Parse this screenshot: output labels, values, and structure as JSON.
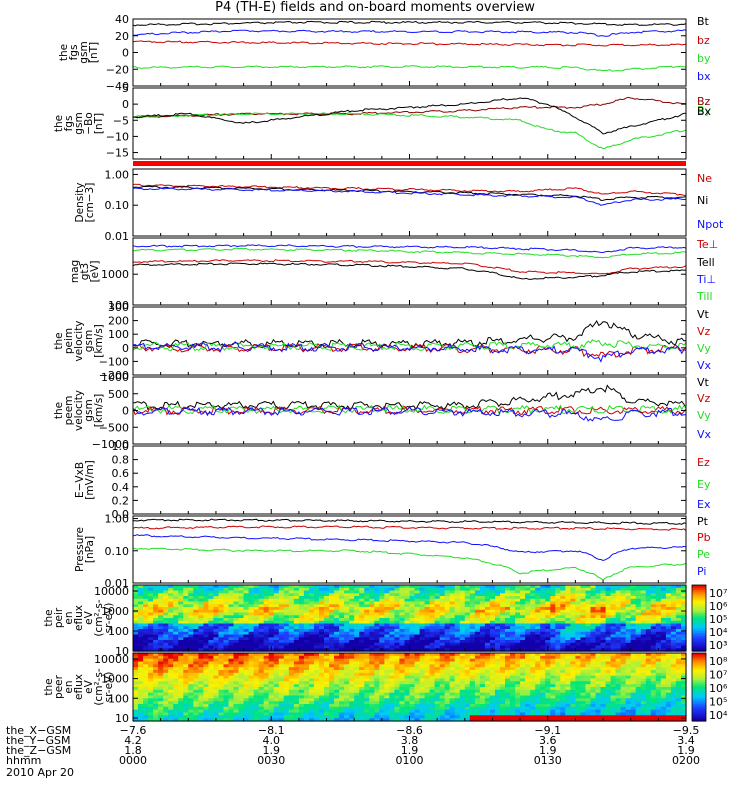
{
  "title": "P4 (TH-E) fields and on-board moments overview",
  "colors": {
    "black": "#000000",
    "red": "#cc0000",
    "green": "#22dd22",
    "blue": "#1010ff",
    "darkred": "#8b0000",
    "band": "#ff0000"
  },
  "chart_data": [
    {
      "type": "line",
      "ylabel": [
        "the",
        "fgs",
        "gsm",
        "[nT]"
      ],
      "ylim": [
        -40,
        40
      ],
      "ticks": [
        "40",
        "20",
        "0",
        "−20",
        "−40"
      ],
      "tick_values": [
        40,
        20,
        0,
        -20,
        -40
      ],
      "series": [
        {
          "name": "Bt",
          "color": "#000000",
          "x": [
            0,
            0.1,
            0.2,
            0.3,
            0.4,
            0.5,
            0.6,
            0.7,
            0.8,
            0.9,
            1.0
          ],
          "y": [
            33,
            34,
            35,
            36,
            36,
            36,
            36,
            36,
            35,
            33,
            34
          ]
        },
        {
          "name": "bz",
          "color": "#cc0000",
          "x": [
            0,
            0.2,
            0.4,
            0.6,
            0.8,
            1.0
          ],
          "y": [
            13,
            12,
            11,
            10,
            9,
            9
          ]
        },
        {
          "name": "by",
          "color": "#22dd22",
          "x": [
            0,
            0.2,
            0.4,
            0.6,
            0.8,
            0.85,
            0.9,
            1.0
          ],
          "y": [
            -18,
            -17,
            -17,
            -17,
            -18,
            -22,
            -20,
            -16
          ]
        },
        {
          "name": "bx",
          "color": "#1010ff",
          "x": [
            0,
            0.1,
            0.2,
            0.4,
            0.6,
            0.8,
            0.85,
            0.9,
            1.0
          ],
          "y": [
            21,
            24,
            26,
            25,
            25,
            24,
            20,
            24,
            26
          ]
        }
      ]
    },
    {
      "type": "line",
      "ylabel": [
        "the",
        "fgs",
        "gsm",
        "−Bo",
        "[nT]"
      ],
      "ylim": [
        -17,
        5
      ],
      "ticks": [
        "5",
        "0",
        "−5",
        "−10",
        "−15"
      ],
      "tick_values": [
        5,
        0,
        -5,
        -10,
        -15
      ],
      "series": [
        {
          "name": "Bz",
          "color": "#8b0000",
          "x": [
            0,
            0.2,
            0.4,
            0.6,
            0.7,
            0.8,
            0.85,
            0.9,
            1.0
          ],
          "y": [
            -4,
            -3,
            -3,
            -2,
            -1,
            -1,
            0,
            2,
            0
          ]
        },
        {
          "name": "By",
          "color": "#22dd22",
          "x": [
            0,
            0.2,
            0.4,
            0.6,
            0.7,
            0.75,
            0.8,
            0.85,
            0.9,
            1.0
          ],
          "y": [
            -4,
            -3,
            -3,
            -4,
            -5,
            -8,
            -9,
            -14,
            -11,
            -8
          ]
        },
        {
          "name": "Bx",
          "color": "#000000",
          "x": [
            0,
            0.1,
            0.2,
            0.3,
            0.4,
            0.5,
            0.6,
            0.7,
            0.75,
            0.8,
            0.85,
            0.9,
            1.0
          ],
          "y": [
            -4,
            -3,
            -6,
            -4,
            -2,
            -1,
            0,
            2,
            0,
            -4,
            -9,
            -7,
            -3
          ]
        }
      ]
    },
    {
      "type": "band",
      "color": "#ff0000"
    },
    {
      "type": "line",
      "ylabel": [
        "Density",
        "[cm−3]"
      ],
      "scale": "log",
      "ylim": [
        0.01,
        1.5
      ],
      "ticks": [
        "1.00",
        "0.10",
        "0.01"
      ],
      "tick_values": [
        1,
        0.1,
        0.01
      ],
      "series": [
        {
          "name": "Ne",
          "color": "#cc0000",
          "x": [
            0,
            0.2,
            0.4,
            0.6,
            0.7,
            0.8,
            0.85,
            0.9,
            1.0
          ],
          "y": [
            0.45,
            0.4,
            0.35,
            0.3,
            0.28,
            0.35,
            0.22,
            0.28,
            0.22
          ]
        },
        {
          "name": "Ni",
          "color": "#000000",
          "x": [
            0,
            0.2,
            0.4,
            0.6,
            0.8,
            0.85,
            0.9,
            1.0
          ],
          "y": [
            0.4,
            0.35,
            0.3,
            0.25,
            0.2,
            0.15,
            0.18,
            0.18
          ]
        },
        {
          "name": "Npot",
          "color": "#1010ff",
          "x": [
            0,
            0.2,
            0.4,
            0.6,
            0.8,
            0.85,
            0.9,
            1.0
          ],
          "y": [
            0.35,
            0.32,
            0.28,
            0.22,
            0.18,
            0.1,
            0.15,
            0.16
          ]
        }
      ]
    },
    {
      "type": "line",
      "ylabel": [
        "mag",
        "gt3",
        "[eV]"
      ],
      "scale": "log",
      "ylim": [
        100,
        15000
      ],
      "ticks": [
        "1000",
        "100"
      ],
      "tick_values": [
        1000,
        100
      ],
      "series": [
        {
          "name": "Te⊥",
          "color": "#cc0000",
          "x": [
            0,
            0.2,
            0.4,
            0.6,
            0.7,
            0.8,
            0.85,
            0.9,
            1.0
          ],
          "y": [
            2500,
            2800,
            2600,
            2200,
            1200,
            1100,
            1000,
            1500,
            1800
          ]
        },
        {
          "name": "Tell",
          "color": "#000000",
          "x": [
            0,
            0.2,
            0.4,
            0.6,
            0.7,
            0.8,
            0.85,
            0.9,
            1.0
          ],
          "y": [
            2000,
            2200,
            2000,
            1500,
            700,
            800,
            900,
            1200,
            1300
          ]
        },
        {
          "name": "Ti⊥",
          "color": "#1010ff",
          "x": [
            0,
            0.2,
            0.4,
            0.6,
            0.8,
            0.85,
            0.9,
            1.0
          ],
          "y": [
            8000,
            8500,
            8000,
            7500,
            6000,
            5000,
            7000,
            7500
          ]
        },
        {
          "name": "Till",
          "color": "#22dd22",
          "x": [
            0,
            0.2,
            0.4,
            0.6,
            0.8,
            0.85,
            0.9,
            1.0
          ],
          "y": [
            6000,
            6500,
            6000,
            5000,
            4000,
            3500,
            4500,
            5000
          ]
        }
      ]
    },
    {
      "type": "line",
      "ylabel": [
        "the",
        "peim",
        "velocity",
        "gsm",
        "[km/s]"
      ],
      "ylim": [
        -200,
        300
      ],
      "ticks": [
        "300",
        "200",
        "100",
        "0",
        "−100",
        "−200"
      ],
      "tick_values": [
        300,
        200,
        100,
        0,
        -100,
        -200
      ],
      "series": [
        {
          "name": "Vt",
          "color": "#000000",
          "x": [
            0,
            0.2,
            0.4,
            0.6,
            0.7,
            0.8,
            0.85,
            0.9,
            1.0
          ],
          "y": [
            30,
            30,
            30,
            35,
            60,
            80,
            200,
            100,
            40
          ]
        },
        {
          "name": "Vz",
          "color": "#cc0000",
          "x": [
            0,
            0.5,
            0.8,
            0.85,
            0.9,
            1.0
          ],
          "y": [
            0,
            0,
            -20,
            -60,
            -20,
            0
          ]
        },
        {
          "name": "Vy",
          "color": "#22dd22",
          "x": [
            0,
            0.5,
            0.8,
            0.85,
            0.9,
            1.0
          ],
          "y": [
            10,
            10,
            20,
            40,
            20,
            10
          ]
        },
        {
          "name": "Vx",
          "color": "#1010ff",
          "x": [
            0,
            0.5,
            0.8,
            0.85,
            0.9,
            1.0
          ],
          "y": [
            10,
            0,
            -20,
            -80,
            -30,
            -10
          ]
        }
      ]
    },
    {
      "type": "line",
      "ylabel": [
        "the",
        "peem",
        "velocity",
        "gsm",
        "[km/s]"
      ],
      "ylim": [
        -1000,
        1000
      ],
      "ticks": [
        "1000",
        "500",
        "0",
        "−500",
        "−1000"
      ],
      "tick_values": [
        1000,
        500,
        0,
        -500,
        -1000
      ],
      "series": [
        {
          "name": "Vt",
          "color": "#000000",
          "x": [
            0,
            0.2,
            0.4,
            0.6,
            0.7,
            0.8,
            0.85,
            0.9,
            1.0
          ],
          "y": [
            150,
            150,
            150,
            150,
            300,
            500,
            700,
            300,
            150
          ]
        },
        {
          "name": "Vz",
          "color": "#cc0000",
          "x": [
            0,
            0.5,
            1.0
          ],
          "y": [
            0,
            0,
            0
          ]
        },
        {
          "name": "Vy",
          "color": "#22dd22",
          "x": [
            0,
            0.5,
            1.0
          ],
          "y": [
            30,
            30,
            30
          ]
        },
        {
          "name": "Vx",
          "color": "#1010ff",
          "x": [
            0,
            0.5,
            0.8,
            0.85,
            0.9,
            1.0
          ],
          "y": [
            -20,
            -20,
            -100,
            -300,
            -100,
            -30
          ]
        }
      ]
    },
    {
      "type": "line",
      "ylabel": [
        "E−VxB",
        "[mV/m]"
      ],
      "ylim": [
        0,
        1
      ],
      "ticks": [
        "1.0",
        "0.8",
        "0.6",
        "0.4",
        "0.2",
        "0.0"
      ],
      "tick_values": [
        1.0,
        0.8,
        0.6,
        0.4,
        0.2,
        0.0
      ],
      "series": [
        {
          "name": "Ez",
          "color": "#cc0000",
          "x": [],
          "y": []
        },
        {
          "name": "Ey",
          "color": "#22dd22",
          "x": [],
          "y": []
        },
        {
          "name": "Ex",
          "color": "#1010ff",
          "x": [],
          "y": []
        }
      ]
    },
    {
      "type": "line",
      "ylabel": [
        "Pressure",
        "[nPa]"
      ],
      "scale": "log",
      "ylim": [
        0.01,
        1.2
      ],
      "ticks": [
        "1.00",
        "0.10",
        "0.01"
      ],
      "tick_values": [
        1,
        0.1,
        0.01
      ],
      "series": [
        {
          "name": "Pt",
          "color": "#000000",
          "x": [
            0,
            0.2,
            0.4,
            0.6,
            0.8,
            1.0
          ],
          "y": [
            0.9,
            0.9,
            0.85,
            0.8,
            0.75,
            0.7
          ]
        },
        {
          "name": "Pb",
          "color": "#cc0000",
          "x": [
            0,
            0.2,
            0.4,
            0.6,
            0.8,
            1.0
          ],
          "y": [
            0.5,
            0.55,
            0.55,
            0.5,
            0.5,
            0.45
          ]
        },
        {
          "name": "Pe",
          "color": "#22dd22",
          "x": [
            0,
            0.2,
            0.4,
            0.6,
            0.7,
            0.8,
            0.85,
            0.9,
            1.0
          ],
          "y": [
            0.12,
            0.1,
            0.1,
            0.06,
            0.02,
            0.03,
            0.012,
            0.03,
            0.04
          ]
        },
        {
          "name": "Pi",
          "color": "#1010ff",
          "x": [
            0,
            0.2,
            0.4,
            0.6,
            0.7,
            0.8,
            0.85,
            0.9,
            1.0
          ],
          "y": [
            0.3,
            0.25,
            0.22,
            0.18,
            0.09,
            0.1,
            0.05,
            0.12,
            0.13
          ]
        }
      ]
    },
    {
      "type": "heatmap",
      "ylabel": [
        "the",
        "peir",
        "en",
        "eflux",
        "eV",
        "(cm²-s-",
        "sr-eV)"
      ],
      "scale": "log",
      "ylim": [
        10,
        20000
      ],
      "ticks": [
        "10000",
        "1000",
        "100",
        "10"
      ],
      "tick_values": [
        10000,
        1000,
        100,
        10
      ],
      "colorbar_ticks": [
        "10⁷",
        "10⁶",
        "10⁵",
        "10⁴",
        "10³"
      ]
    },
    {
      "type": "heatmap",
      "ylabel": [
        "the",
        "peer",
        "en",
        "eflux",
        "eV",
        "(cm²-s-",
        "sr-eV)"
      ],
      "scale": "log",
      "ylim": [
        7,
        20000
      ],
      "ticks": [
        "10000",
        "1000",
        "100",
        "10"
      ],
      "tick_values": [
        10000,
        1000,
        100,
        10
      ],
      "colorbar_ticks": [
        "10⁸",
        "10⁷",
        "10⁶",
        "10⁵",
        "10⁴"
      ]
    }
  ],
  "x_axis": {
    "rows": [
      {
        "label": "the_X−GSM",
        "values": [
          "−7.6",
          "−8.1",
          "−8.6",
          "−9.1",
          "−9.5"
        ]
      },
      {
        "label": "the_Y−GSM",
        "values": [
          "4.2",
          "4.0",
          "3.8",
          "3.6",
          "3.4"
        ]
      },
      {
        "label": "the_Z−GSM",
        "values": [
          "1.8",
          "1.9",
          "1.9",
          "1.9",
          "1.9"
        ]
      },
      {
        "label": "hhmm",
        "values": [
          "0000",
          "0030",
          "0100",
          "0130",
          "0200"
        ]
      }
    ],
    "date": "2010 Apr 20"
  }
}
